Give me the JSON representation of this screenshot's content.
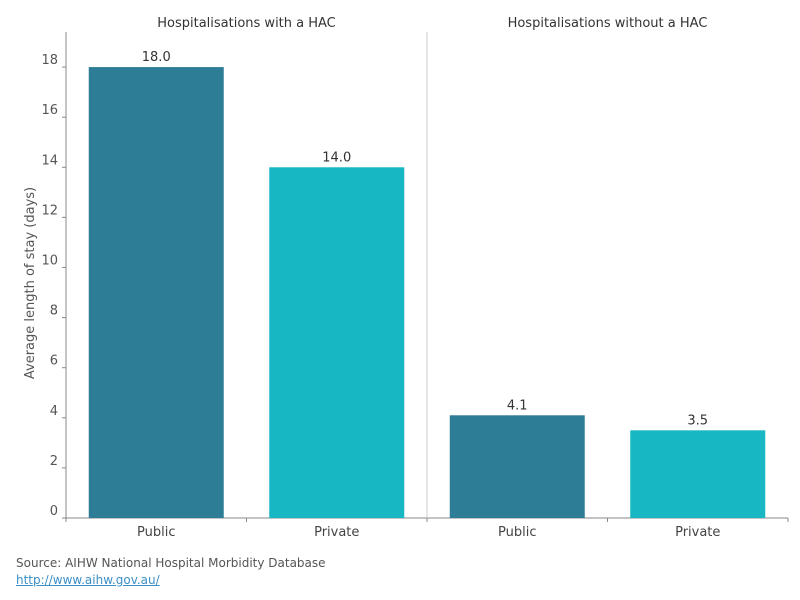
{
  "chart_data": {
    "type": "bar",
    "ylabel": "Average length of stay (days)",
    "ylim": [
      0,
      19.4
    ],
    "yticks": [
      0,
      2,
      4,
      6,
      8,
      10,
      12,
      14,
      16,
      18
    ],
    "grid": false,
    "panels": [
      {
        "title": "Hospitalisations with a HAC",
        "categories": [
          "Public",
          "Private"
        ],
        "values": [
          18.0,
          14.0
        ],
        "labels": [
          "18.0",
          "14.0"
        ]
      },
      {
        "title": "Hospitalisations without a HAC",
        "categories": [
          "Public",
          "Private"
        ],
        "values": [
          4.1,
          3.5
        ],
        "labels": [
          "4.1",
          "3.5"
        ]
      }
    ],
    "colors": {
      "Public": "#2e7d96",
      "Private": "#17b8c4"
    }
  },
  "source": {
    "text": "Source: AIHW National Hospital Morbidity Database",
    "link": "http://www.aihw.gov.au/"
  }
}
